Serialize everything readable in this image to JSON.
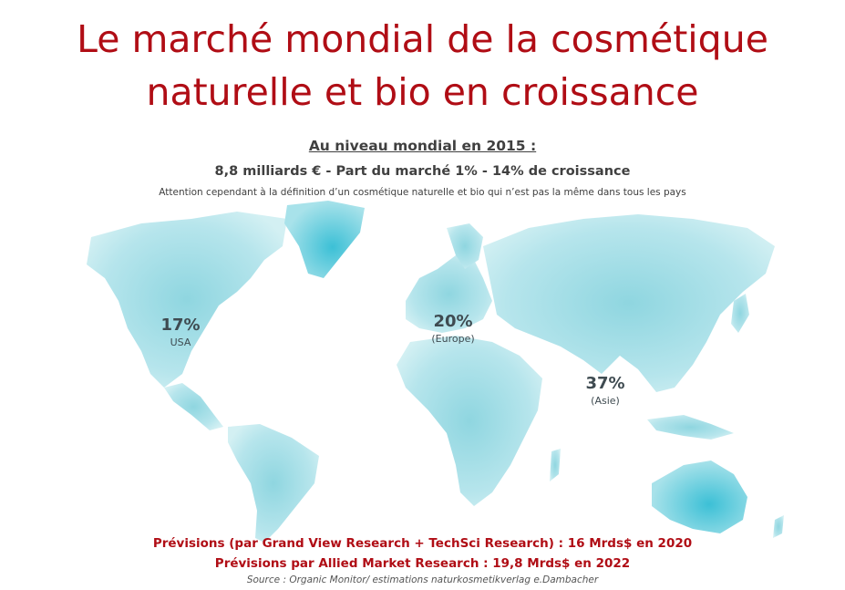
{
  "title": {
    "line1": "Le marché mondial de la cosmétique",
    "line2": "naturelle et bio en croissance"
  },
  "heading": "Au niveau mondial en 2015 :",
  "stats": "8,8 milliards  € - Part du marché 1% - 14% de croissance",
  "note": "Attention cependant à la définition d’un cosmétique naturelle et bio qui n’est pas la même dans tous les pays",
  "regions": [
    {
      "pct": "17%",
      "label": "USA"
    },
    {
      "pct": "20%",
      "label": "(Europe)"
    },
    {
      "pct": "37%",
      "label": "(Asie)"
    }
  ],
  "forecasts": [
    "Prévisions (par Grand View  Research + TechSci Research) : 16 Mrds$ en 2020",
    "Prévisions par Allied Market Research : 19,8 Mrds$ en 2022"
  ],
  "source": "Source : Organic Monitor/ estimations naturkosmetikverlag e.Dambacher",
  "colors": {
    "title": "#b00d15",
    "map_light": "#b8e6ec",
    "map_dark": "#4cc4d6"
  }
}
